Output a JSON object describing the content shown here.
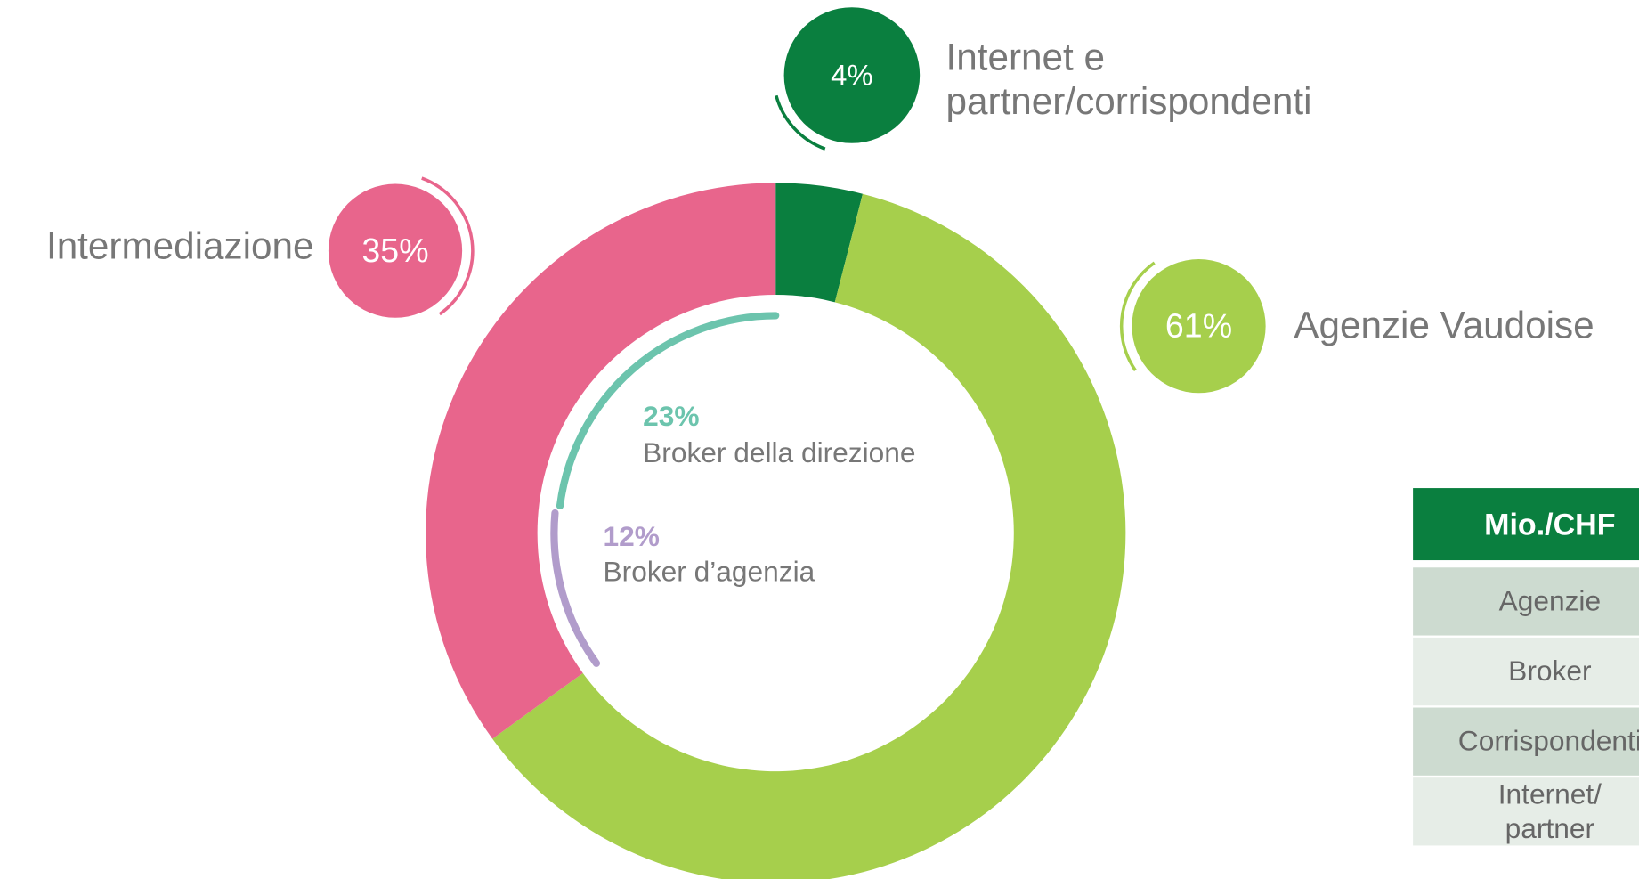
{
  "chart_data": {
    "type": "donut",
    "categories": [
      "Internet e partner/corrispondenti",
      "Agenzie Vaudoise",
      "Intermediazione"
    ],
    "values": [
      4,
      61,
      35
    ],
    "value_labels": [
      "4%",
      "61%",
      "35%"
    ],
    "colors": [
      "#0a7f3f",
      "#a6cf4c",
      "#e8658c"
    ],
    "breakdown": {
      "categories": [
        "Broker della direzione",
        "Broker d’agenzia"
      ],
      "values": [
        23,
        12
      ],
      "value_labels": [
        "23%",
        "12%"
      ],
      "colors": [
        "#6cc4ad",
        "#b19ccb"
      ]
    }
  },
  "table": {
    "header": "Mio./CHF",
    "rows": [
      "Agenzie",
      "Broker",
      "Corrispondenti",
      "Internet/ partner"
    ]
  }
}
